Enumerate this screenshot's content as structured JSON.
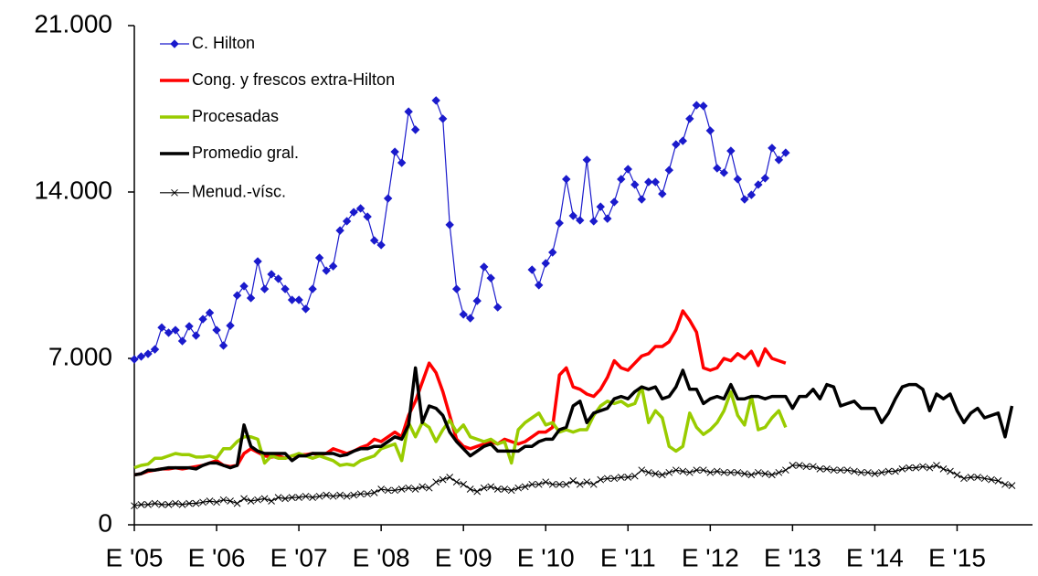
{
  "chart_data": {
    "type": "line",
    "categories": [
      "E '05",
      null,
      null,
      null,
      null,
      null,
      null,
      null,
      null,
      null,
      null,
      null,
      "E '06",
      null,
      null,
      null,
      null,
      null,
      null,
      null,
      null,
      null,
      null,
      null,
      "E '07",
      null,
      null,
      null,
      null,
      null,
      null,
      null,
      null,
      null,
      null,
      null,
      "E '08",
      null,
      null,
      null,
      null,
      null,
      null,
      null,
      null,
      null,
      null,
      null,
      "E '09",
      null,
      null,
      null,
      null,
      null,
      null,
      null,
      null,
      null,
      null,
      null,
      "E '10",
      null,
      null,
      null,
      null,
      null,
      null,
      null,
      null,
      null,
      null,
      null,
      "E '11",
      null,
      null,
      null,
      null,
      null,
      null,
      null,
      null,
      null,
      null,
      null,
      "E '12",
      null,
      null,
      null,
      null,
      null,
      null,
      null,
      null,
      null,
      null,
      null,
      "E '13",
      null,
      null,
      null,
      null,
      null,
      null,
      null,
      null,
      null,
      null,
      null,
      "E '14",
      null,
      null,
      null,
      null,
      null,
      null,
      null,
      null,
      null,
      null,
      null,
      "E '15",
      null,
      null,
      null,
      null,
      null,
      null,
      null,
      null,
      null,
      null,
      null
    ],
    "ylim": [
      0,
      21000
    ],
    "yticks": [
      0,
      {
        "value": 7000,
        "label": "7.000"
      },
      {
        "value": 14000,
        "label": "14.000"
      },
      {
        "value": 21000,
        "label": "21.000"
      }
    ],
    "legend": "top-left",
    "series": [
      {
        "name": "C. Hilton",
        "color": "#1a1acc",
        "marker": "diamond",
        "values": [
          6960,
          7080,
          7190,
          7380,
          8300,
          8080,
          8190,
          7730,
          8350,
          7960,
          8650,
          8920,
          8190,
          7540,
          8380,
          9650,
          10040,
          9540,
          11080,
          9920,
          10540,
          10350,
          9920,
          9460,
          9460,
          9080,
          9920,
          11230,
          10690,
          10880,
          12380,
          12770,
          13150,
          13310,
          12960,
          11960,
          11770,
          13730,
          15690,
          15230,
          17380,
          16620,
          null,
          null,
          17850,
          17080,
          12620,
          9920,
          8850,
          8690,
          9420,
          10850,
          10380,
          9150,
          null,
          null,
          null,
          null,
          10730,
          10080,
          11000,
          11460,
          12690,
          14540,
          13000,
          12810,
          15350,
          12770,
          13380,
          12880,
          13580,
          14540,
          14960,
          14310,
          13690,
          14420,
          14420,
          13920,
          14920,
          16000,
          16150,
          17080,
          17650,
          17620,
          16580,
          15000,
          14810,
          15730,
          14540,
          13690,
          13880,
          14310,
          14580,
          15850,
          15350,
          15650,
          null,
          null,
          null,
          null,
          null,
          null,
          null,
          null,
          null,
          null,
          null,
          null,
          null,
          null,
          null,
          null,
          null,
          null,
          null,
          null,
          null,
          null,
          null,
          null,
          null,
          null,
          null,
          null,
          null,
          null,
          null,
          null,
          null,
          null,
          null,
          null
        ]
      },
      {
        "name": "Cong. y frescos extra-Hilton",
        "color": "#ff0000",
        "values": [
          2100,
          2150,
          2250,
          2300,
          2350,
          2350,
          2400,
          2350,
          2400,
          2450,
          2500,
          2600,
          2700,
          2500,
          2450,
          2500,
          3000,
          3200,
          3050,
          2900,
          2850,
          2900,
          2800,
          2900,
          2950,
          2950,
          3000,
          2950,
          3000,
          3200,
          3100,
          3000,
          3100,
          3250,
          3350,
          3600,
          3500,
          3700,
          3900,
          3700,
          4600,
          5200,
          6000,
          6800,
          6400,
          5600,
          4600,
          3600,
          3300,
          3200,
          3300,
          3400,
          3500,
          3400,
          3600,
          3500,
          3400,
          3500,
          3700,
          3900,
          3900,
          4100,
          6300,
          6600,
          5800,
          5700,
          5500,
          5400,
          5700,
          6200,
          6900,
          6600,
          6500,
          6800,
          7100,
          7200,
          7500,
          7500,
          7700,
          8200,
          9000,
          8600,
          8100,
          6600,
          6500,
          6600,
          7000,
          6900,
          7200,
          7000,
          7300,
          6700,
          7400,
          7000,
          6900,
          6800,
          null,
          null,
          null,
          null,
          null,
          null,
          null,
          null,
          null,
          null,
          null,
          null,
          null,
          null,
          null,
          null,
          null,
          null,
          null,
          null,
          null,
          null,
          null,
          null,
          null,
          null,
          null,
          null,
          null,
          null,
          null,
          null,
          null,
          null,
          null,
          null
        ]
      },
      {
        "name": "Procesadas",
        "color": "#99cc00",
        "values": [
          2400,
          2500,
          2550,
          2800,
          2800,
          2900,
          3000,
          2950,
          2950,
          2850,
          2850,
          2900,
          2800,
          3200,
          3200,
          3500,
          3700,
          3700,
          3600,
          2600,
          2900,
          2800,
          2800,
          2900,
          3000,
          2900,
          2800,
          2900,
          2800,
          2700,
          2500,
          2550,
          2500,
          2700,
          2800,
          2900,
          3200,
          3300,
          3400,
          2700,
          4300,
          3700,
          4300,
          4100,
          3500,
          4000,
          4400,
          3900,
          4200,
          3700,
          3600,
          3500,
          3600,
          3400,
          3500,
          2600,
          4000,
          4300,
          4500,
          4700,
          4200,
          4300,
          3900,
          4000,
          3900,
          4000,
          4000,
          4600,
          5000,
          5200,
          5100,
          5200,
          5000,
          5100,
          5800,
          4300,
          4800,
          4500,
          3300,
          3100,
          3300,
          4700,
          4100,
          3800,
          4000,
          4300,
          4800,
          5600,
          4600,
          4200,
          5400,
          4000,
          4100,
          4500,
          4800,
          4100,
          null,
          null,
          null,
          null,
          null,
          null,
          null,
          null,
          null,
          null,
          null,
          null,
          null,
          null,
          null,
          null,
          null,
          null,
          null,
          null,
          null,
          null,
          null,
          null,
          null,
          null,
          null,
          null,
          null,
          null,
          null,
          null,
          null,
          null,
          null,
          null
        ]
      },
      {
        "name": "Promedio gral.",
        "color": "#000000",
        "values": [
          2100,
          2150,
          2300,
          2300,
          2350,
          2400,
          2400,
          2400,
          2400,
          2350,
          2500,
          2600,
          2600,
          2500,
          2400,
          2500,
          4200,
          3300,
          3100,
          3000,
          3000,
          3000,
          3000,
          2700,
          2900,
          2900,
          3000,
          3000,
          3000,
          3000,
          2900,
          2950,
          3100,
          3200,
          3200,
          3300,
          3300,
          3500,
          3700,
          3600,
          4200,
          6600,
          4300,
          5000,
          4900,
          4600,
          3900,
          3500,
          3200,
          2900,
          3100,
          3300,
          3400,
          3100,
          3100,
          3100,
          3100,
          3300,
          3300,
          3500,
          3600,
          3600,
          4000,
          4100,
          5000,
          5200,
          4300,
          4700,
          4800,
          4900,
          5300,
          5400,
          5300,
          5600,
          5800,
          5700,
          5800,
          5300,
          5400,
          5800,
          6500,
          5700,
          5700,
          5100,
          5300,
          5400,
          5300,
          5900,
          5300,
          5300,
          5400,
          5400,
          5300,
          5400,
          5400,
          5400,
          4900,
          5400,
          5400,
          5700,
          5300,
          5900,
          5800,
          5000,
          5100,
          5200,
          4900,
          4900,
          4900,
          4300,
          4700,
          5300,
          5800,
          5900,
          5900,
          5700,
          4800,
          5500,
          5300,
          5500,
          4800,
          4300,
          4700,
          4900,
          4500,
          4600,
          4700,
          3700,
          5000,
          null,
          null,
          null
        ]
      },
      {
        "name": "Menud.-vísc.",
        "color": "#000000",
        "marker": "x",
        "values": [
          800,
          850,
          850,
          900,
          850,
          850,
          900,
          850,
          900,
          900,
          950,
          1000,
          950,
          1050,
          1000,
          900,
          1100,
          1000,
          1050,
          1100,
          1000,
          1150,
          1100,
          1150,
          1150,
          1200,
          1150,
          1200,
          1250,
          1200,
          1250,
          1200,
          1250,
          1300,
          1300,
          1350,
          1500,
          1450,
          1450,
          1500,
          1550,
          1500,
          1600,
          1550,
          1800,
          1900,
          2000,
          1800,
          1700,
          1500,
          1400,
          1550,
          1600,
          1500,
          1500,
          1450,
          1550,
          1600,
          1700,
          1700,
          1800,
          1700,
          1700,
          1700,
          1850,
          1700,
          1800,
          1700,
          1900,
          1950,
          1950,
          2000,
          2000,
          2050,
          2300,
          2200,
          2150,
          2100,
          2200,
          2300,
          2250,
          2200,
          2300,
          2300,
          2200,
          2250,
          2200,
          2200,
          2200,
          2150,
          2100,
          2200,
          2150,
          2100,
          2200,
          2300,
          2500,
          2500,
          2450,
          2450,
          2350,
          2350,
          2300,
          2300,
          2300,
          2250,
          2200,
          2200,
          2150,
          2200,
          2250,
          2250,
          2350,
          2400,
          2400,
          2450,
          2400,
          2500,
          2350,
          2250,
          2100,
          1950,
          2000,
          2000,
          1950,
          1900,
          1850,
          1700,
          1650,
          null,
          null,
          null
        ]
      }
    ]
  }
}
